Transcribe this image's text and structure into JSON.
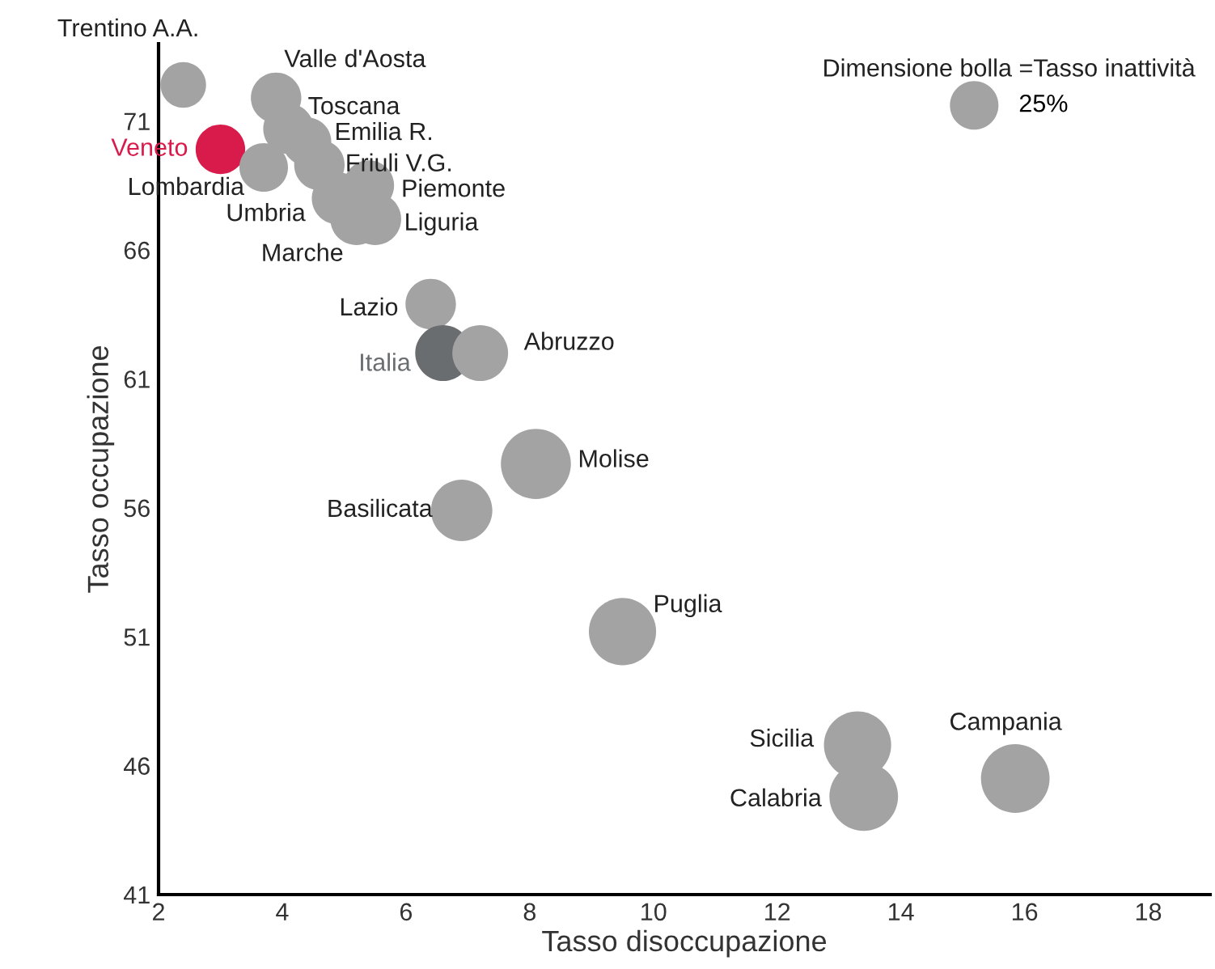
{
  "chart_data": {
    "type": "bubble",
    "xlabel": "Tasso disoccupazione",
    "ylabel": "Tasso occupazione",
    "legend_title": "Dimensione bolla =Tasso inattività",
    "size_legend": [
      {
        "value": 25,
        "label": "25%"
      }
    ],
    "xlim": [
      2,
      19
    ],
    "xticks": [
      2,
      4,
      6,
      8,
      10,
      12,
      14,
      16,
      18
    ],
    "ylim": [
      41,
      74
    ],
    "yticks": [
      41,
      46,
      51,
      56,
      61,
      66,
      71
    ],
    "grid": false,
    "series": [
      {
        "name": "Trentino A.A.",
        "color": "#a3a3a3",
        "x": [
          2.4
        ],
        "values": [
          72.4
        ],
        "sizes": [
          22
        ]
      },
      {
        "name": "Valle d'Aosta",
        "color": "#a3a3a3",
        "x": [
          3.9
        ],
        "values": [
          71.9
        ],
        "sizes": [
          27
        ]
      },
      {
        "name": "Veneto",
        "color": "#d81b4a",
        "x": [
          3.0
        ],
        "values": [
          69.9
        ],
        "sizes": [
          26
        ]
      },
      {
        "name": "Toscana",
        "color": "#a3a3a3",
        "x": [
          4.1
        ],
        "values": [
          70.7
        ],
        "sizes": [
          27
        ]
      },
      {
        "name": "Emilia R.",
        "color": "#a3a3a3",
        "x": [
          4.4
        ],
        "values": [
          70.2
        ],
        "sizes": [
          25
        ]
      },
      {
        "name": "Lombardia",
        "color": "#a3a3a3",
        "x": [
          3.7
        ],
        "values": [
          69.2
        ],
        "sizes": [
          25
        ]
      },
      {
        "name": "Friuli V.G.",
        "color": "#a3a3a3",
        "x": [
          4.6
        ],
        "values": [
          69.3
        ],
        "sizes": [
          27
        ]
      },
      {
        "name": "Piemonte",
        "color": "#a3a3a3",
        "x": [
          5.4
        ],
        "values": [
          68.5
        ],
        "sizes": [
          27
        ]
      },
      {
        "name": "Umbria",
        "color": "#a3a3a3",
        "x": [
          4.9
        ],
        "values": [
          68.0
        ],
        "sizes": [
          29
        ]
      },
      {
        "name": "Liguria",
        "color": "#a3a3a3",
        "x": [
          5.5
        ],
        "values": [
          67.2
        ],
        "sizes": [
          29
        ]
      },
      {
        "name": "Marche",
        "color": "#a3a3a3",
        "x": [
          5.2
        ],
        "values": [
          67.2
        ],
        "sizes": [
          29
        ]
      },
      {
        "name": "Lazio",
        "color": "#a3a3a3",
        "x": [
          6.4
        ],
        "values": [
          63.9
        ],
        "sizes": [
          27
        ]
      },
      {
        "name": "Italia",
        "color": "#6a6d70",
        "x": [
          6.6
        ],
        "values": [
          62.0
        ],
        "sizes": [
          33
        ]
      },
      {
        "name": "Abruzzo",
        "color": "#a3a3a3",
        "x": [
          7.2
        ],
        "values": [
          62.0
        ],
        "sizes": [
          33
        ]
      },
      {
        "name": "Molise",
        "color": "#a3a3a3",
        "x": [
          8.1
        ],
        "values": [
          57.7
        ],
        "sizes": [
          52
        ]
      },
      {
        "name": "Basilicata",
        "color": "#a3a3a3",
        "x": [
          6.9
        ],
        "values": [
          55.9
        ],
        "sizes": [
          40
        ]
      },
      {
        "name": "Puglia",
        "color": "#a3a3a3",
        "x": [
          9.5
        ],
        "values": [
          51.2
        ],
        "sizes": [
          48
        ]
      },
      {
        "name": "Sicilia",
        "color": "#a3a3a3",
        "x": [
          13.3
        ],
        "values": [
          46.8
        ],
        "sizes": [
          48
        ]
      },
      {
        "name": "Calabria",
        "color": "#a3a3a3",
        "x": [
          13.4
        ],
        "values": [
          44.8
        ],
        "sizes": [
          50
        ]
      },
      {
        "name": "Campania",
        "color": "#a3a3a3",
        "x": [
          15.85
        ],
        "values": [
          45.5
        ],
        "sizes": [
          50
        ]
      }
    ]
  }
}
